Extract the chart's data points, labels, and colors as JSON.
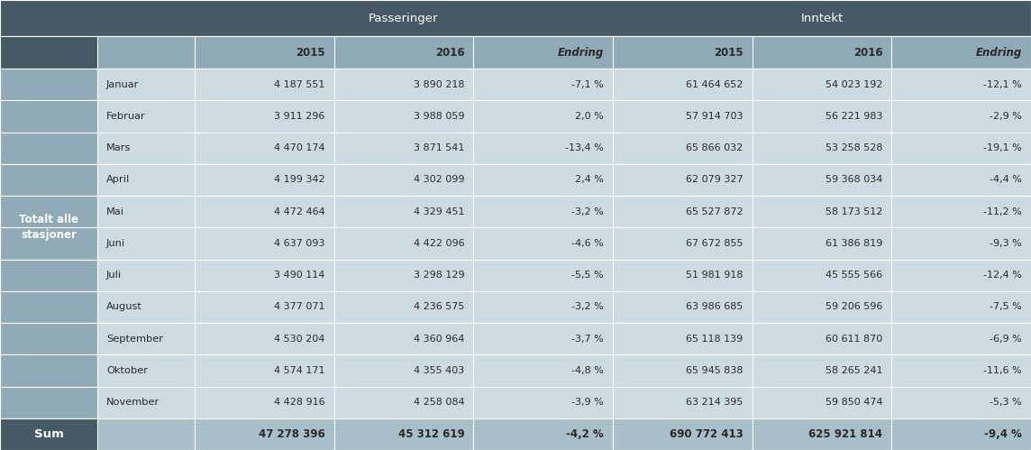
{
  "title_passeringer": "Passeringer",
  "title_inntekt": "Inntekt",
  "months": [
    "Januar",
    "Februar",
    "Mars",
    "April",
    "Mai",
    "Juni",
    "Juli",
    "August",
    "September",
    "Oktober",
    "November"
  ],
  "pass_2015": [
    "4 187 551",
    "3 911 296",
    "4 470 174",
    "4 199 342",
    "4 472 464",
    "4 637 093",
    "3 490 114",
    "4 377 071",
    "4 530 204",
    "4 574 171",
    "4 428 916"
  ],
  "pass_2016": [
    "3 890 218",
    "3 988 059",
    "3 871 541",
    "4 302 099",
    "4 329 451",
    "4 422 096",
    "3 298 129",
    "4 236 575",
    "4 360 964",
    "4 355 403",
    "4 258 084"
  ],
  "pass_endring": [
    "-7,1 %",
    "2,0 %",
    "-13,4 %",
    "2,4 %",
    "-3,2 %",
    "-4,6 %",
    "-5,5 %",
    "-3,2 %",
    "-3,7 %",
    "-4,8 %",
    "-3,9 %"
  ],
  "inn_2015": [
    "61 464 652",
    "57 914 703",
    "65 866 032",
    "62 079 327",
    "65 527 872",
    "67 672 855",
    "51 981 918",
    "63 986 685",
    "65 118 139",
    "65 945 838",
    "63 214 395"
  ],
  "inn_2016": [
    "54 023 192",
    "56 221 983",
    "53 258 528",
    "59 368 034",
    "58 173 512",
    "61 386 819",
    "45 555 566",
    "59 206 596",
    "60 611 870",
    "58 265 241",
    "59 850 474"
  ],
  "inn_endring": [
    "-12,1 %",
    "-2,9 %",
    "-19,1 %",
    "-4,4 %",
    "-11,2 %",
    "-9,3 %",
    "-12,4 %",
    "-7,5 %",
    "-6,9 %",
    "-11,6 %",
    "-5,3 %"
  ],
  "sum_pass_2015": "47 278 396",
  "sum_pass_2016": "45 312 619",
  "sum_pass_endring": "-4,2 %",
  "sum_inn_2015": "690 772 413",
  "sum_inn_2016": "625 921 814",
  "sum_inn_endring": "-9,4 %",
  "sum_label": "Sum",
  "row_label_line1": "Totalt alle",
  "row_label_line2": "stasjoner",
  "color_dark": "#455a64",
  "color_mid": "#90aab8",
  "color_light": "#ccdae1",
  "color_sum_data": "#a8bfc9",
  "color_white": "#ffffff",
  "color_body_text": "#2a2a2a",
  "color_header_text": "#ffffff",
  "figw": 11.44,
  "figh": 4.99,
  "dpi": 100
}
